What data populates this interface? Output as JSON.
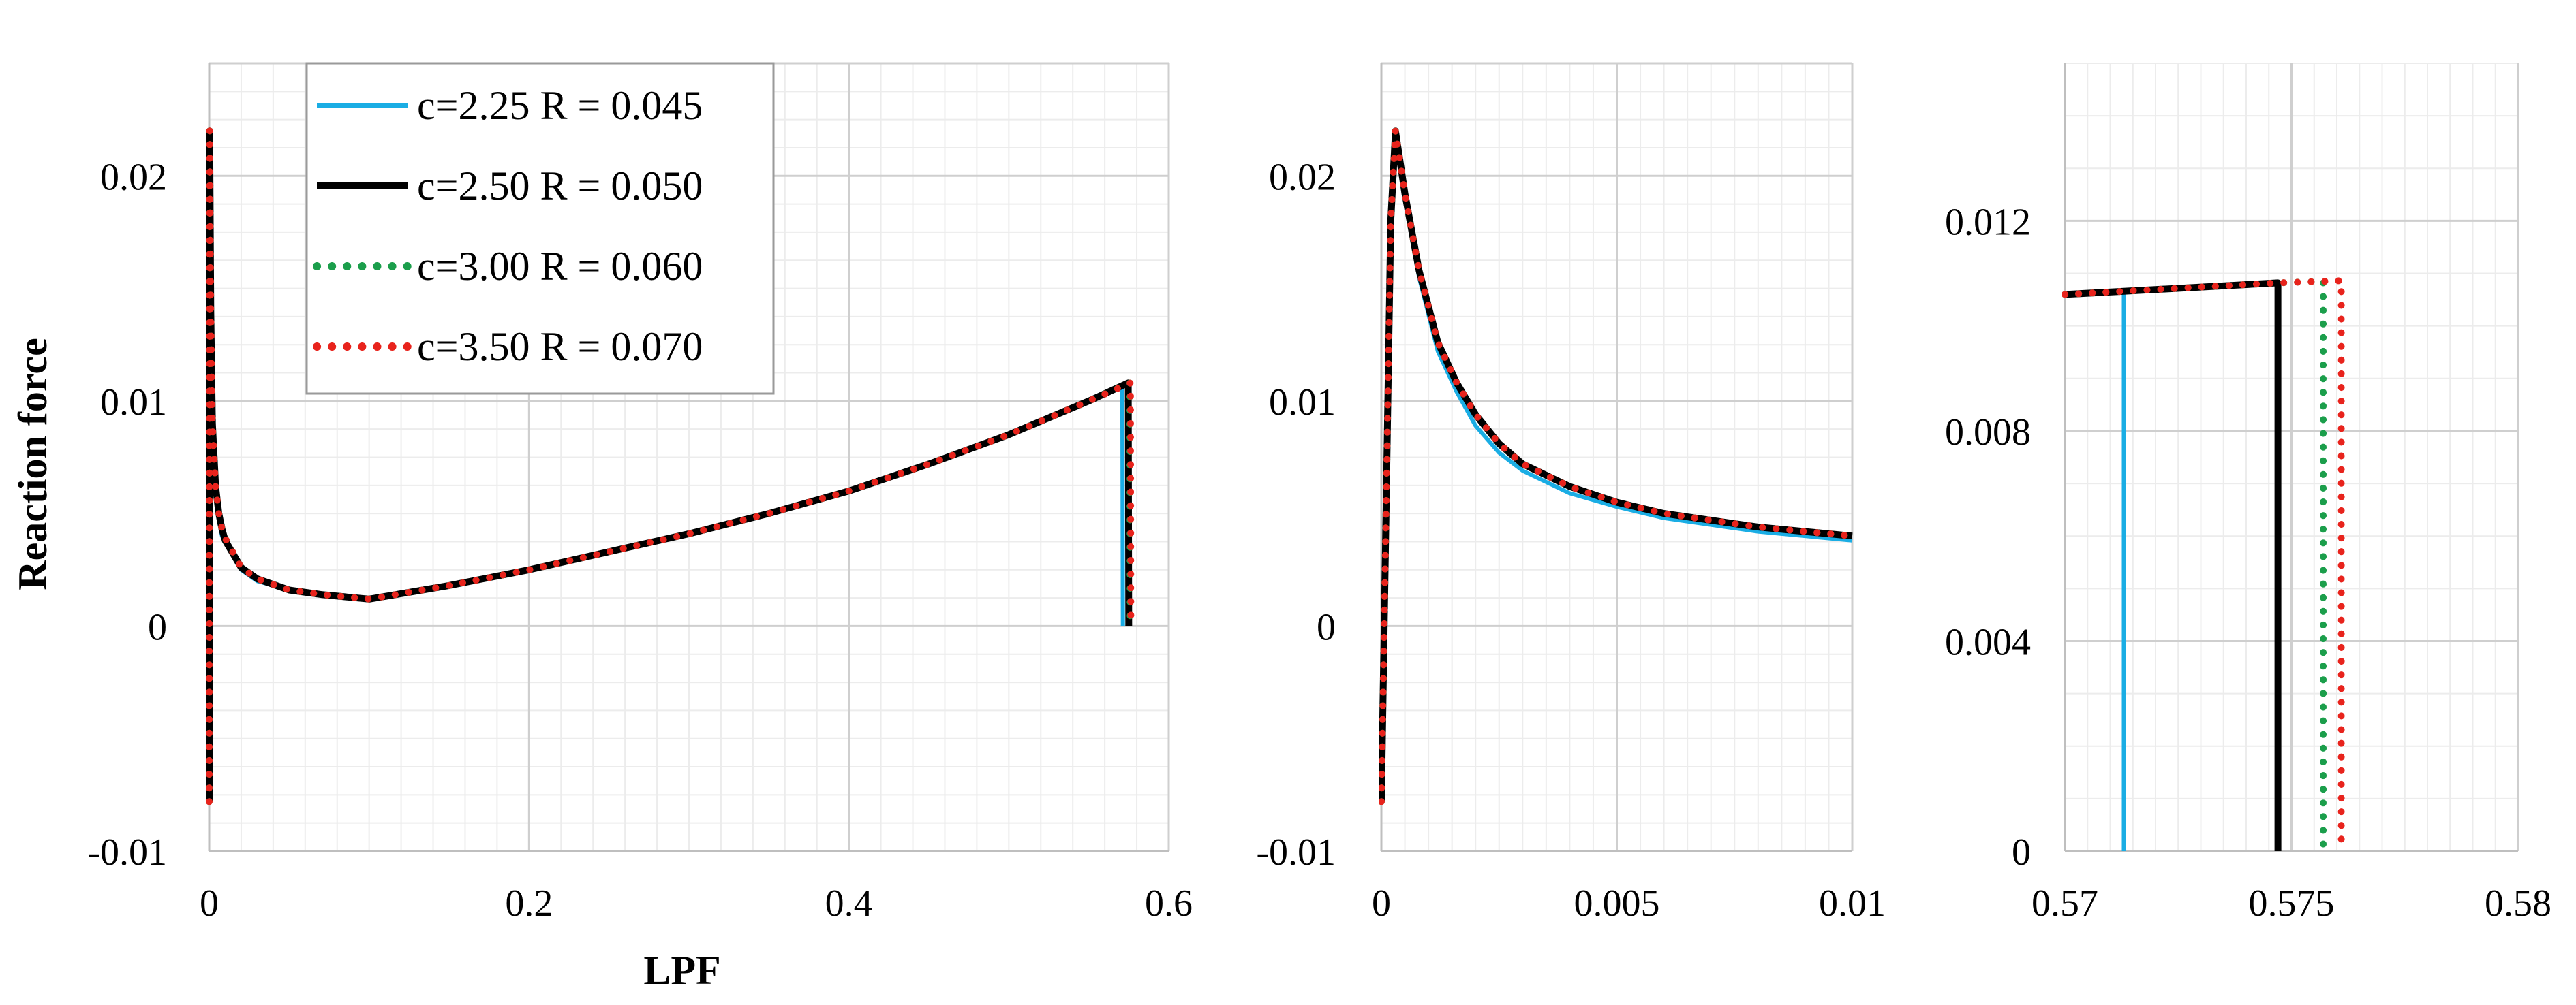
{
  "chart_data": [
    {
      "type": "line",
      "xlabel": "LPF",
      "ylabel": "Reaction force",
      "xlim": [
        0,
        0.6
      ],
      "ylim": [
        -0.01,
        0.025
      ],
      "xticks": [
        "0",
        "0.2",
        "0.4",
        "0.6"
      ],
      "yticks": [
        "-0.01",
        "0",
        "0.01",
        "0.02"
      ],
      "grid": true,
      "legend_position": "top-left",
      "series": [
        {
          "name": "c=2.25 R = 0.045",
          "color": "#1AADE4",
          "style": "solid",
          "x": [
            0,
            0.0003,
            0.001,
            0.002,
            0.004,
            0.006,
            0.008,
            0.01,
            0.02,
            0.03,
            0.05,
            0.07,
            0.1,
            0.15,
            0.2,
            0.25,
            0.3,
            0.35,
            0.4,
            0.45,
            0.5,
            0.55,
            0.571,
            0.5713
          ],
          "y": [
            -0.0078,
            0.022,
            0.014,
            0.0085,
            0.0059,
            0.0047,
            0.004,
            0.0037,
            0.0025,
            0.002,
            0.0016,
            0.0014,
            0.0012,
            0.0018,
            0.0025,
            0.0033,
            0.0041,
            0.005,
            0.006,
            0.0072,
            0.0085,
            0.01,
            0.0106,
            0
          ]
        },
        {
          "name": "c=2.50 R = 0.050",
          "color": "#000000",
          "style": "solid",
          "x": [
            0,
            0.0003,
            0.001,
            0.002,
            0.004,
            0.006,
            0.008,
            0.01,
            0.02,
            0.03,
            0.05,
            0.07,
            0.1,
            0.15,
            0.2,
            0.25,
            0.3,
            0.35,
            0.4,
            0.45,
            0.5,
            0.55,
            0.5747,
            0.575
          ],
          "y": [
            -0.0078,
            0.022,
            0.014,
            0.009,
            0.0062,
            0.005,
            0.0043,
            0.0038,
            0.0026,
            0.0021,
            0.0016,
            0.0014,
            0.0012,
            0.0018,
            0.0025,
            0.0033,
            0.0041,
            0.005,
            0.006,
            0.0072,
            0.0085,
            0.01,
            0.0108,
            0
          ]
        },
        {
          "name": "c=3.00 R = 0.060",
          "color": "#1B9E4B",
          "style": "dotted",
          "x": [
            0,
            0.0003,
            0.001,
            0.002,
            0.004,
            0.006,
            0.008,
            0.01,
            0.02,
            0.03,
            0.05,
            0.07,
            0.1,
            0.15,
            0.2,
            0.25,
            0.3,
            0.35,
            0.4,
            0.45,
            0.5,
            0.55,
            0.5757,
            0.5759
          ],
          "y": [
            -0.0078,
            0.022,
            0.014,
            0.009,
            0.0062,
            0.005,
            0.0043,
            0.0039,
            0.0026,
            0.0021,
            0.0016,
            0.0014,
            0.0012,
            0.0018,
            0.0025,
            0.0033,
            0.0041,
            0.005,
            0.006,
            0.0072,
            0.0085,
            0.01,
            0.0108,
            0
          ]
        },
        {
          "name": "c=3.50 R = 0.070",
          "color": "#E8231C",
          "style": "dotted",
          "x": [
            0,
            0.0003,
            0.001,
            0.002,
            0.004,
            0.006,
            0.008,
            0.01,
            0.02,
            0.03,
            0.05,
            0.07,
            0.1,
            0.15,
            0.2,
            0.25,
            0.3,
            0.35,
            0.4,
            0.45,
            0.5,
            0.55,
            0.5761,
            0.5763
          ],
          "y": [
            -0.0078,
            0.022,
            0.014,
            0.009,
            0.0062,
            0.005,
            0.0043,
            0.0039,
            0.0026,
            0.0021,
            0.0016,
            0.0014,
            0.0012,
            0.0018,
            0.0025,
            0.0033,
            0.0041,
            0.005,
            0.006,
            0.0072,
            0.0085,
            0.01,
            0.0108,
            0
          ]
        }
      ]
    },
    {
      "type": "line",
      "xlabel": "",
      "ylabel": "",
      "xlim": [
        0,
        0.01
      ],
      "ylim": [
        -0.01,
        0.025
      ],
      "xticks": [
        "0",
        "0.005",
        "0.01"
      ],
      "yticks": [
        "-0.01",
        "0",
        "0.01",
        "0.02"
      ],
      "grid": true,
      "series": [
        {
          "name": "c=2.25 R = 0.045",
          "color": "#1AADE4",
          "style": "solid",
          "x": [
            0,
            0.0002,
            0.0003,
            0.0005,
            0.0008,
            0.0012,
            0.0016,
            0.002,
            0.0025,
            0.003,
            0.004,
            0.005,
            0.006,
            0.007,
            0.008,
            0.009,
            0.01
          ],
          "y": [
            -0.0078,
            0.018,
            0.022,
            0.019,
            0.0155,
            0.0122,
            0.0104,
            0.0089,
            0.0077,
            0.0069,
            0.0059,
            0.0053,
            0.0048,
            0.0045,
            0.0042,
            0.004,
            0.0038
          ]
        },
        {
          "name": "c=2.50 R = 0.050",
          "color": "#000000",
          "style": "solid",
          "x": [
            0,
            0.0002,
            0.0003,
            0.0005,
            0.0008,
            0.0012,
            0.0016,
            0.002,
            0.0025,
            0.003,
            0.004,
            0.005,
            0.006,
            0.007,
            0.008,
            0.009,
            0.01
          ],
          "y": [
            -0.0078,
            0.018,
            0.022,
            0.0192,
            0.0158,
            0.0126,
            0.0108,
            0.0094,
            0.0081,
            0.0072,
            0.0062,
            0.0055,
            0.005,
            0.0047,
            0.0044,
            0.0042,
            0.004
          ]
        },
        {
          "name": "c=3.00 R = 0.060",
          "color": "#1B9E4B",
          "style": "dotted",
          "x": [
            0,
            0.0002,
            0.0003,
            0.0005,
            0.0008,
            0.0012,
            0.0016,
            0.002,
            0.0025,
            0.003,
            0.004,
            0.005,
            0.006,
            0.007,
            0.008,
            0.009,
            0.01
          ],
          "y": [
            -0.0078,
            0.018,
            0.022,
            0.0192,
            0.0158,
            0.0126,
            0.0108,
            0.0094,
            0.0081,
            0.0072,
            0.0062,
            0.0055,
            0.005,
            0.0047,
            0.0044,
            0.0042,
            0.004
          ]
        },
        {
          "name": "c=3.50 R = 0.070",
          "color": "#E8231C",
          "style": "dotted",
          "x": [
            0,
            0.0002,
            0.0003,
            0.0005,
            0.0008,
            0.0012,
            0.0016,
            0.002,
            0.0025,
            0.003,
            0.004,
            0.005,
            0.006,
            0.007,
            0.008,
            0.009,
            0.01
          ],
          "y": [
            -0.0078,
            0.018,
            0.022,
            0.0192,
            0.0158,
            0.0126,
            0.0108,
            0.0094,
            0.0081,
            0.0072,
            0.0062,
            0.0055,
            0.005,
            0.0047,
            0.0044,
            0.0042,
            0.004
          ]
        }
      ]
    },
    {
      "type": "line",
      "xlabel": "",
      "ylabel": "",
      "xlim": [
        0.57,
        0.58
      ],
      "ylim": [
        0,
        0.015
      ],
      "xticks": [
        "0.57",
        "0.575",
        "0.58"
      ],
      "yticks": [
        "0",
        "0.004",
        "0.008",
        "0.012"
      ],
      "grid": true,
      "series": [
        {
          "name": "c=2.25 R = 0.045",
          "color": "#1AADE4",
          "style": "solid",
          "x": [
            0.57,
            0.5713,
            0.5713
          ],
          "y": [
            0.0106,
            0.01066,
            0
          ]
        },
        {
          "name": "c=2.50 R = 0.050",
          "color": "#000000",
          "style": "solid",
          "x": [
            0.57,
            0.5713,
            0.5747,
            0.5747
          ],
          "y": [
            0.0106,
            0.01066,
            0.01082,
            0
          ]
        },
        {
          "name": "c=3.00 R = 0.060",
          "color": "#1B9E4B",
          "style": "dotted",
          "x": [
            0.57,
            0.5713,
            0.5747,
            0.5757,
            0.5757
          ],
          "y": [
            0.0106,
            0.01066,
            0.01082,
            0.01085,
            0
          ]
        },
        {
          "name": "c=3.50 R = 0.070",
          "color": "#E8231C",
          "style": "dotted",
          "x": [
            0.57,
            0.5713,
            0.5747,
            0.5761,
            0.5761
          ],
          "y": [
            0.0106,
            0.01066,
            0.01082,
            0.01086,
            0
          ]
        }
      ]
    }
  ]
}
